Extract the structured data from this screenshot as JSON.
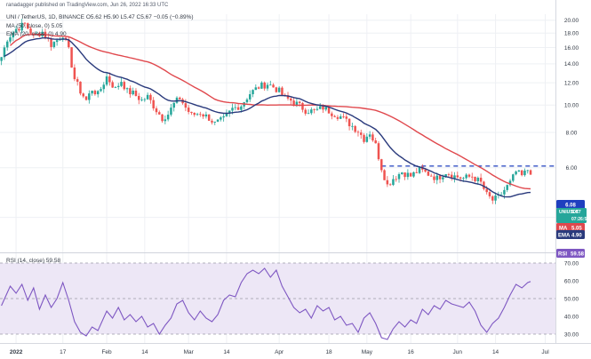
{
  "header": {
    "publisher": "ranadagger published on TradingView.com, Jun 26, 2022 16:33 UTC",
    "symbol_line": "UNI / TetherUS, 1D, BINANCE O5.62 H5.90 L5.47 C5.67 −0.05 (−0.89%)",
    "ma_line": "MA (50, close, 0) 5.05",
    "ema_line": "EMA (20, close, 0) 4.90",
    "rsi_line": "RSI (14, close) 59.58"
  },
  "colors": {
    "up": "#26a69a",
    "down": "#ef5350",
    "ema": "#2a3a7c",
    "ma": "#e0484d",
    "rsi": "#7e57c2",
    "rsi_band": "#ede7f6",
    "level_line": "#1f3fbf"
  },
  "tags": {
    "level": "6.08",
    "price_name": "UNIUSDT",
    "price": "5.67",
    "countdown": "07:26:53",
    "ma_name": "MA",
    "ma": "5.05",
    "ema_name": "EMA",
    "ema": "4.90",
    "rsi_name": "RSI",
    "rsi": "59.58"
  },
  "chart_data": [
    {
      "type": "candlestick",
      "title": "UNI / TetherUS, 1D, BINANCE",
      "y_scale": "log",
      "y_ticks": [
        4.0,
        6.0,
        8.0,
        10.0,
        12.0,
        14.0,
        16.0,
        18.0,
        20.0
      ],
      "ylim": [
        3.05,
        21.0
      ],
      "x_ticks": [
        "2022",
        "17",
        "Feb",
        "14",
        "Mar",
        "14",
        "Apr",
        "18",
        "May",
        "16",
        "Jun",
        "14",
        "Jul"
      ],
      "x_tick_days": [
        5,
        21,
        36,
        49,
        64,
        77,
        95,
        112,
        125,
        140,
        156,
        169,
        186
      ],
      "days": 190,
      "horizontal_level": 6.08,
      "path_points": [
        [
          0,
          14.8
        ],
        [
          2,
          17.2
        ],
        [
          5,
          18.6
        ],
        [
          8,
          19.4
        ],
        [
          11,
          17.6
        ],
        [
          14,
          18.2
        ],
        [
          17,
          16.4
        ],
        [
          19,
          17.0
        ],
        [
          21,
          17.8
        ],
        [
          23,
          15.6
        ],
        [
          25,
          12.4
        ],
        [
          27,
          11.2
        ],
        [
          29,
          10.4
        ],
        [
          31,
          11.4
        ],
        [
          33,
          10.9
        ],
        [
          36,
          12.6
        ],
        [
          39,
          11.4
        ],
        [
          41,
          12.2
        ],
        [
          43,
          11.2
        ],
        [
          45,
          11.0
        ],
        [
          48,
          10.4
        ],
        [
          50,
          10.7
        ],
        [
          53,
          9.6
        ],
        [
          55,
          9.0
        ],
        [
          57,
          9.3
        ],
        [
          59,
          10.1
        ],
        [
          61,
          10.6
        ],
        [
          63,
          9.8
        ],
        [
          65,
          9.2
        ],
        [
          68,
          9.4
        ],
        [
          71,
          9.0
        ],
        [
          73,
          8.6
        ],
        [
          76,
          8.9
        ],
        [
          79,
          9.7
        ],
        [
          82,
          10.0
        ],
        [
          85,
          11.0
        ],
        [
          88,
          11.6
        ],
        [
          91,
          11.9
        ],
        [
          93,
          11.6
        ],
        [
          95,
          11.2
        ],
        [
          97,
          10.6
        ],
        [
          99,
          10.4
        ],
        [
          101,
          10.1
        ],
        [
          104,
          9.6
        ],
        [
          107,
          9.5
        ],
        [
          110,
          9.8
        ],
        [
          113,
          9.4
        ],
        [
          116,
          9.1
        ],
        [
          119,
          8.6
        ],
        [
          122,
          8.1
        ],
        [
          124,
          7.6
        ],
        [
          126,
          8.0
        ],
        [
          128,
          7.2
        ],
        [
          130,
          6.0
        ],
        [
          132,
          5.2
        ],
        [
          134,
          5.5
        ],
        [
          137,
          5.8
        ],
        [
          140,
          5.6
        ],
        [
          143,
          5.9
        ],
        [
          146,
          5.7
        ],
        [
          149,
          5.5
        ],
        [
          152,
          5.8
        ],
        [
          155,
          5.6
        ],
        [
          158,
          5.5
        ],
        [
          161,
          5.6
        ],
        [
          164,
          5.3
        ],
        [
          166,
          4.8
        ],
        [
          168,
          4.6
        ],
        [
          170,
          4.7
        ],
        [
          172,
          5.0
        ],
        [
          174,
          5.3
        ],
        [
          176,
          5.8
        ],
        [
          178,
          5.6
        ],
        [
          180,
          5.9
        ],
        [
          181,
          5.67
        ]
      ],
      "last_close": 5.67,
      "ma50_last": 5.05,
      "ema20_last": 4.9
    },
    {
      "type": "line",
      "title": "RSI (14, close)",
      "y_ticks": [
        30.0,
        40.0,
        50.0,
        60.0,
        70.0
      ],
      "ylim": [
        25,
        75
      ],
      "band": [
        30,
        70
      ],
      "series": [
        {
          "name": "RSI",
          "points": [
            [
              0,
              46
            ],
            [
              3,
              57
            ],
            [
              5,
              53
            ],
            [
              7,
              58
            ],
            [
              9,
              49
            ],
            [
              11,
              56
            ],
            [
              13,
              44
            ],
            [
              15,
              52
            ],
            [
              17,
              45
            ],
            [
              19,
              50
            ],
            [
              21,
              59
            ],
            [
              23,
              49
            ],
            [
              25,
              37
            ],
            [
              27,
              31
            ],
            [
              29,
              29
            ],
            [
              31,
              34
            ],
            [
              33,
              32
            ],
            [
              36,
              43
            ],
            [
              38,
              39
            ],
            [
              40,
              45
            ],
            [
              42,
              38
            ],
            [
              44,
              41
            ],
            [
              46,
              37
            ],
            [
              48,
              40
            ],
            [
              50,
              34
            ],
            [
              52,
              36
            ],
            [
              54,
              30
            ],
            [
              56,
              35
            ],
            [
              58,
              39
            ],
            [
              60,
              47
            ],
            [
              62,
              49
            ],
            [
              64,
              42
            ],
            [
              66,
              38
            ],
            [
              68,
              43
            ],
            [
              70,
              39
            ],
            [
              72,
              37
            ],
            [
              74,
              41
            ],
            [
              76,
              49
            ],
            [
              78,
              52
            ],
            [
              80,
              51
            ],
            [
              82,
              59
            ],
            [
              84,
              64
            ],
            [
              86,
              66
            ],
            [
              88,
              64
            ],
            [
              90,
              67
            ],
            [
              92,
              62
            ],
            [
              94,
              66
            ],
            [
              96,
              57
            ],
            [
              98,
              51
            ],
            [
              100,
              45
            ],
            [
              102,
              42
            ],
            [
              104,
              44
            ],
            [
              106,
              39
            ],
            [
              108,
              46
            ],
            [
              110,
              43
            ],
            [
              112,
              45
            ],
            [
              114,
              38
            ],
            [
              116,
              40
            ],
            [
              118,
              35
            ],
            [
              120,
              36
            ],
            [
              122,
              31
            ],
            [
              124,
              39
            ],
            [
              126,
              42
            ],
            [
              128,
              36
            ],
            [
              130,
              28
            ],
            [
              132,
              27
            ],
            [
              134,
              33
            ],
            [
              136,
              37
            ],
            [
              138,
              34
            ],
            [
              140,
              38
            ],
            [
              142,
              36
            ],
            [
              144,
              44
            ],
            [
              146,
              41
            ],
            [
              148,
              46
            ],
            [
              150,
              44
            ],
            [
              152,
              49
            ],
            [
              154,
              47
            ],
            [
              156,
              46
            ],
            [
              158,
              45
            ],
            [
              160,
              48
            ],
            [
              162,
              43
            ],
            [
              164,
              35
            ],
            [
              166,
              31
            ],
            [
              168,
              36
            ],
            [
              170,
              39
            ],
            [
              172,
              45
            ],
            [
              174,
              52
            ],
            [
              176,
              58
            ],
            [
              178,
              56
            ],
            [
              180,
              59
            ],
            [
              181,
              59.58
            ]
          ]
        }
      ]
    }
  ]
}
